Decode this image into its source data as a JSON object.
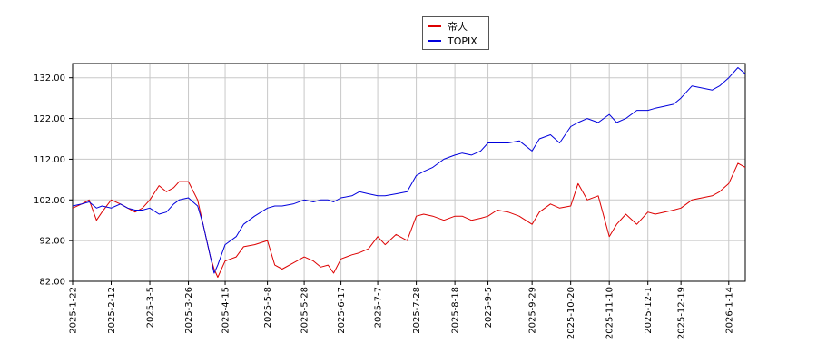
{
  "chart_data": {
    "type": "line",
    "title": "",
    "xlabel": "",
    "ylabel": "",
    "ylim": [
      82,
      135
    ],
    "yticks": [
      "82.00",
      "92.00",
      "102.00",
      "112.00",
      "122.00",
      "132.00"
    ],
    "ytick_values": [
      82,
      92,
      102,
      112,
      122,
      132
    ],
    "xticks": [
      "2025-1-22",
      "2025-2-12",
      "2025-3-5",
      "2025-3-26",
      "2025-4-15",
      "2025-5-8",
      "2025-5-28",
      "2025-6-17",
      "2025-7-7",
      "2025-7-28",
      "2025-8-18",
      "2025-9-5",
      "2025-9-29",
      "2025-10-20",
      "2025-11-10",
      "2025-12-1",
      "2025-12-19",
      "2026-1-14"
    ],
    "grid": true,
    "legend_position": "top-center",
    "series": [
      {
        "name": "帝人",
        "color": "#dd0000",
        "x": [
          "2025-1-22",
          "2025-1-27",
          "2025-1-31",
          "2025-2-4",
          "2025-2-7",
          "2025-2-12",
          "2025-2-17",
          "2025-2-21",
          "2025-2-25",
          "2025-3-1",
          "2025-3-5",
          "2025-3-10",
          "2025-3-14",
          "2025-3-18",
          "2025-3-21",
          "2025-3-26",
          "2025-3-31",
          "2025-4-3",
          "2025-4-7",
          "2025-4-9",
          "2025-4-11",
          "2025-4-15",
          "2025-4-21",
          "2025-4-25",
          "2025-5-1",
          "2025-5-8",
          "2025-5-12",
          "2025-5-16",
          "2025-5-22",
          "2025-5-28",
          "2025-6-2",
          "2025-6-6",
          "2025-6-10",
          "2025-6-13",
          "2025-6-17",
          "2025-6-23",
          "2025-6-27",
          "2025-7-2",
          "2025-7-7",
          "2025-7-11",
          "2025-7-17",
          "2025-7-23",
          "2025-7-28",
          "2025-8-1",
          "2025-8-6",
          "2025-8-12",
          "2025-8-18",
          "2025-8-22",
          "2025-8-27",
          "2025-9-1",
          "2025-9-5",
          "2025-9-10",
          "2025-9-16",
          "2025-9-22",
          "2025-9-29",
          "2025-10-3",
          "2025-10-9",
          "2025-10-14",
          "2025-10-20",
          "2025-10-24",
          "2025-10-29",
          "2025-11-4",
          "2025-11-10",
          "2025-11-14",
          "2025-11-19",
          "2025-11-25",
          "2025-12-1",
          "2025-12-5",
          "2025-12-10",
          "2025-12-15",
          "2025-12-19",
          "2025-12-25",
          "2026-1-5",
          "2026-1-9",
          "2026-1-14",
          "2026-1-19",
          "2026-1-23"
        ],
        "values": [
          100.0,
          101.0,
          102.0,
          97.0,
          99.0,
          102.0,
          101.0,
          100.0,
          99.0,
          100.0,
          102.0,
          105.5,
          104.0,
          105.0,
          106.5,
          106.5,
          102.0,
          96.0,
          88.0,
          85.0,
          83.0,
          87.0,
          88.0,
          90.5,
          91.0,
          92.0,
          86.0,
          85.0,
          86.5,
          88.0,
          87.0,
          85.5,
          86.0,
          84.0,
          87.5,
          88.5,
          89.0,
          90.0,
          93.0,
          91.0,
          93.5,
          92.0,
          98.0,
          98.5,
          98.0,
          97.0,
          98.0,
          98.0,
          97.0,
          97.5,
          98.0,
          99.5,
          99.0,
          98.0,
          96.0,
          99.0,
          101.0,
          100.0,
          100.5,
          106.0,
          102.0,
          103.0,
          93.0,
          96.0,
          98.5,
          96.0,
          99.0,
          98.5,
          99.0,
          99.5,
          100.0,
          102.0,
          103.0,
          104.0,
          106.0,
          111.0,
          110.0
        ]
      },
      {
        "name": "TOPIX",
        "color": "#0000dd",
        "x": [
          "2025-1-22",
          "2025-1-27",
          "2025-1-31",
          "2025-2-4",
          "2025-2-7",
          "2025-2-12",
          "2025-2-17",
          "2025-2-21",
          "2025-2-25",
          "2025-3-1",
          "2025-3-5",
          "2025-3-10",
          "2025-3-14",
          "2025-3-18",
          "2025-3-21",
          "2025-3-26",
          "2025-3-31",
          "2025-4-3",
          "2025-4-7",
          "2025-4-9",
          "2025-4-11",
          "2025-4-15",
          "2025-4-21",
          "2025-4-25",
          "2025-5-1",
          "2025-5-8",
          "2025-5-12",
          "2025-5-16",
          "2025-5-22",
          "2025-5-28",
          "2025-6-2",
          "2025-6-6",
          "2025-6-10",
          "2025-6-13",
          "2025-6-17",
          "2025-6-23",
          "2025-6-27",
          "2025-7-2",
          "2025-7-7",
          "2025-7-11",
          "2025-7-17",
          "2025-7-23",
          "2025-7-28",
          "2025-8-1",
          "2025-8-6",
          "2025-8-12",
          "2025-8-18",
          "2025-8-22",
          "2025-8-27",
          "2025-9-1",
          "2025-9-5",
          "2025-9-10",
          "2025-9-16",
          "2025-9-22",
          "2025-9-29",
          "2025-10-3",
          "2025-10-9",
          "2025-10-14",
          "2025-10-20",
          "2025-10-24",
          "2025-10-29",
          "2025-11-4",
          "2025-11-10",
          "2025-11-14",
          "2025-11-19",
          "2025-11-25",
          "2025-12-1",
          "2025-12-5",
          "2025-12-10",
          "2025-12-15",
          "2025-12-19",
          "2025-12-25",
          "2026-1-5",
          "2026-1-9",
          "2026-1-14",
          "2026-1-19",
          "2026-1-23"
        ],
        "values": [
          100.5,
          101.0,
          101.5,
          100.0,
          100.5,
          100.0,
          101.0,
          100.0,
          99.5,
          99.5,
          100.0,
          98.5,
          99.0,
          101.0,
          102.0,
          102.5,
          100.5,
          96.0,
          88.0,
          84.0,
          86.0,
          91.0,
          93.0,
          96.0,
          98.0,
          100.0,
          100.5,
          100.5,
          101.0,
          102.0,
          101.5,
          102.0,
          102.0,
          101.5,
          102.5,
          103.0,
          104.0,
          103.5,
          103.0,
          103.0,
          103.5,
          104.0,
          108.0,
          109.0,
          110.0,
          112.0,
          113.0,
          113.5,
          113.0,
          114.0,
          116.0,
          116.0,
          116.0,
          116.5,
          114.0,
          117.0,
          118.0,
          116.0,
          120.0,
          121.0,
          122.0,
          121.0,
          123.0,
          121.0,
          122.0,
          124.0,
          124.0,
          124.5,
          125.0,
          125.5,
          127.0,
          130.0,
          129.0,
          130.0,
          132.0,
          134.5,
          133.0
        ]
      }
    ]
  }
}
